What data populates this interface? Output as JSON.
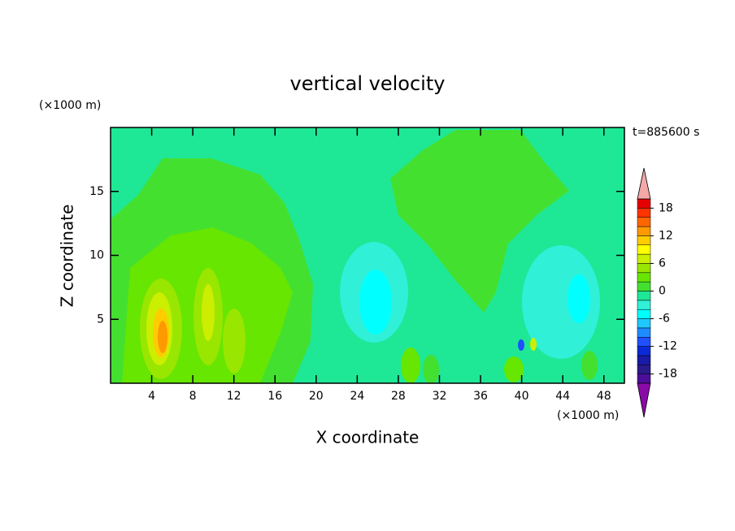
{
  "chart_data": {
    "type": "contour",
    "title": "vertical velocity",
    "x_label": "X coordinate",
    "y_label": "Z coordinate",
    "x_unit": "(×1000 m)",
    "y_unit": "(×1000 m)",
    "time_label": "t=885600 s",
    "xlim": [
      0,
      50
    ],
    "ylim": [
      0,
      20
    ],
    "xticks": [
      4,
      8,
      12,
      16,
      20,
      24,
      28,
      32,
      36,
      40,
      44,
      48
    ],
    "yticks": [
      5,
      10,
      15
    ],
    "colorbar": {
      "lim": [
        -20,
        20
      ],
      "ticks": [
        18,
        12,
        6,
        0,
        -6,
        -12,
        -18
      ],
      "levels": [
        -20,
        -18,
        -16,
        -14,
        -12,
        -10,
        -8,
        -6,
        -4,
        -2,
        0,
        2,
        4,
        6,
        8,
        10,
        12,
        14,
        16,
        18,
        20
      ],
      "colors": [
        "#4b0f9b",
        "#2a1a8c",
        "#1a1aa8",
        "#0a2ad8",
        "#1e50ff",
        "#1e8cff",
        "#1ec8ff",
        "#00ffff",
        "#30f0d8",
        "#1ee896",
        "#44e030",
        "#66e600",
        "#99e600",
        "#ccee00",
        "#ffff00",
        "#ffcc00",
        "#ff9900",
        "#ff6600",
        "#ff3300",
        "#e60000"
      ],
      "over_color": "#f4a8a8",
      "under_color": "#8a0aa8"
    }
  }
}
